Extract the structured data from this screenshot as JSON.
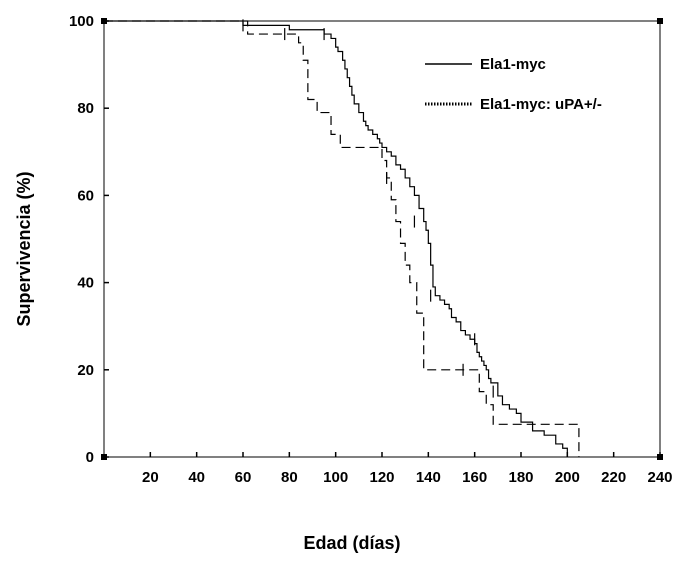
{
  "colors": {
    "line": "#000000",
    "background": "#ffffff"
  },
  "chart_data": {
    "type": "line",
    "subtype": "kaplan-meier step curves",
    "title": "",
    "xlabel": "Edad (días)",
    "ylabel": "Supervivencia (%)",
    "xlim": [
      0,
      240
    ],
    "ylim": [
      0,
      100
    ],
    "xticks": [
      20,
      40,
      60,
      80,
      100,
      120,
      140,
      160,
      180,
      200,
      220,
      240
    ],
    "yticks": [
      0,
      20,
      40,
      60,
      80,
      100
    ],
    "grid": false,
    "legend_position": "top-right",
    "series": [
      {
        "name": "Ela1-myc",
        "line_style": "solid",
        "x": [
          0,
          55,
          60,
          62,
          80,
          95,
          98,
          100,
          101,
          103,
          104,
          105,
          106,
          107,
          108,
          110,
          112,
          113,
          114,
          116,
          118,
          119,
          120,
          121,
          122,
          124,
          126,
          128,
          130,
          132,
          134,
          136,
          138,
          139,
          140,
          141,
          142,
          143,
          145,
          147,
          149,
          150,
          152,
          154,
          156,
          158,
          160,
          161,
          162,
          163,
          164,
          165,
          166,
          167,
          170,
          172,
          175,
          178,
          180,
          185,
          190,
          195,
          198,
          200
        ],
        "y": [
          100,
          100,
          99,
          99,
          98,
          97,
          96,
          94,
          93,
          91,
          89,
          87,
          85,
          83,
          81,
          79,
          77,
          76,
          75,
          74,
          73,
          72,
          71,
          71,
          70,
          69,
          67,
          66,
          64,
          62,
          60,
          57,
          54,
          52,
          49,
          44,
          39,
          37,
          36,
          35,
          34,
          32,
          31,
          29,
          28,
          27,
          26,
          24,
          23,
          22,
          21,
          20,
          18,
          17,
          14,
          12,
          11,
          10,
          8,
          6,
          5,
          3,
          2,
          0
        ],
        "censored_marks": [
          [
            60,
            99
          ],
          [
            95,
            97
          ],
          [
            134,
            54
          ],
          [
            141,
            37
          ],
          [
            160,
            27
          ]
        ]
      },
      {
        "name": "Ela1-myc: uPA+/-",
        "line_style": "dashed",
        "x": [
          0,
          58,
          62,
          78,
          82,
          84,
          86,
          88,
          92,
          98,
          102,
          110,
          118,
          120,
          122,
          124,
          126,
          128,
          130,
          132,
          135,
          138,
          150,
          155,
          158,
          162,
          165,
          168,
          205
        ],
        "y": [
          100,
          100,
          97,
          97,
          97,
          95,
          91,
          82,
          79,
          74,
          71,
          71,
          71,
          68,
          64,
          59,
          54,
          49,
          44,
          40,
          33,
          20,
          20,
          20,
          20,
          15,
          12,
          7.5,
          0
        ],
        "censored_marks": [
          [
            78,
            97
          ],
          [
            122,
            64
          ],
          [
            155,
            20
          ],
          [
            168,
            15
          ]
        ]
      }
    ]
  }
}
